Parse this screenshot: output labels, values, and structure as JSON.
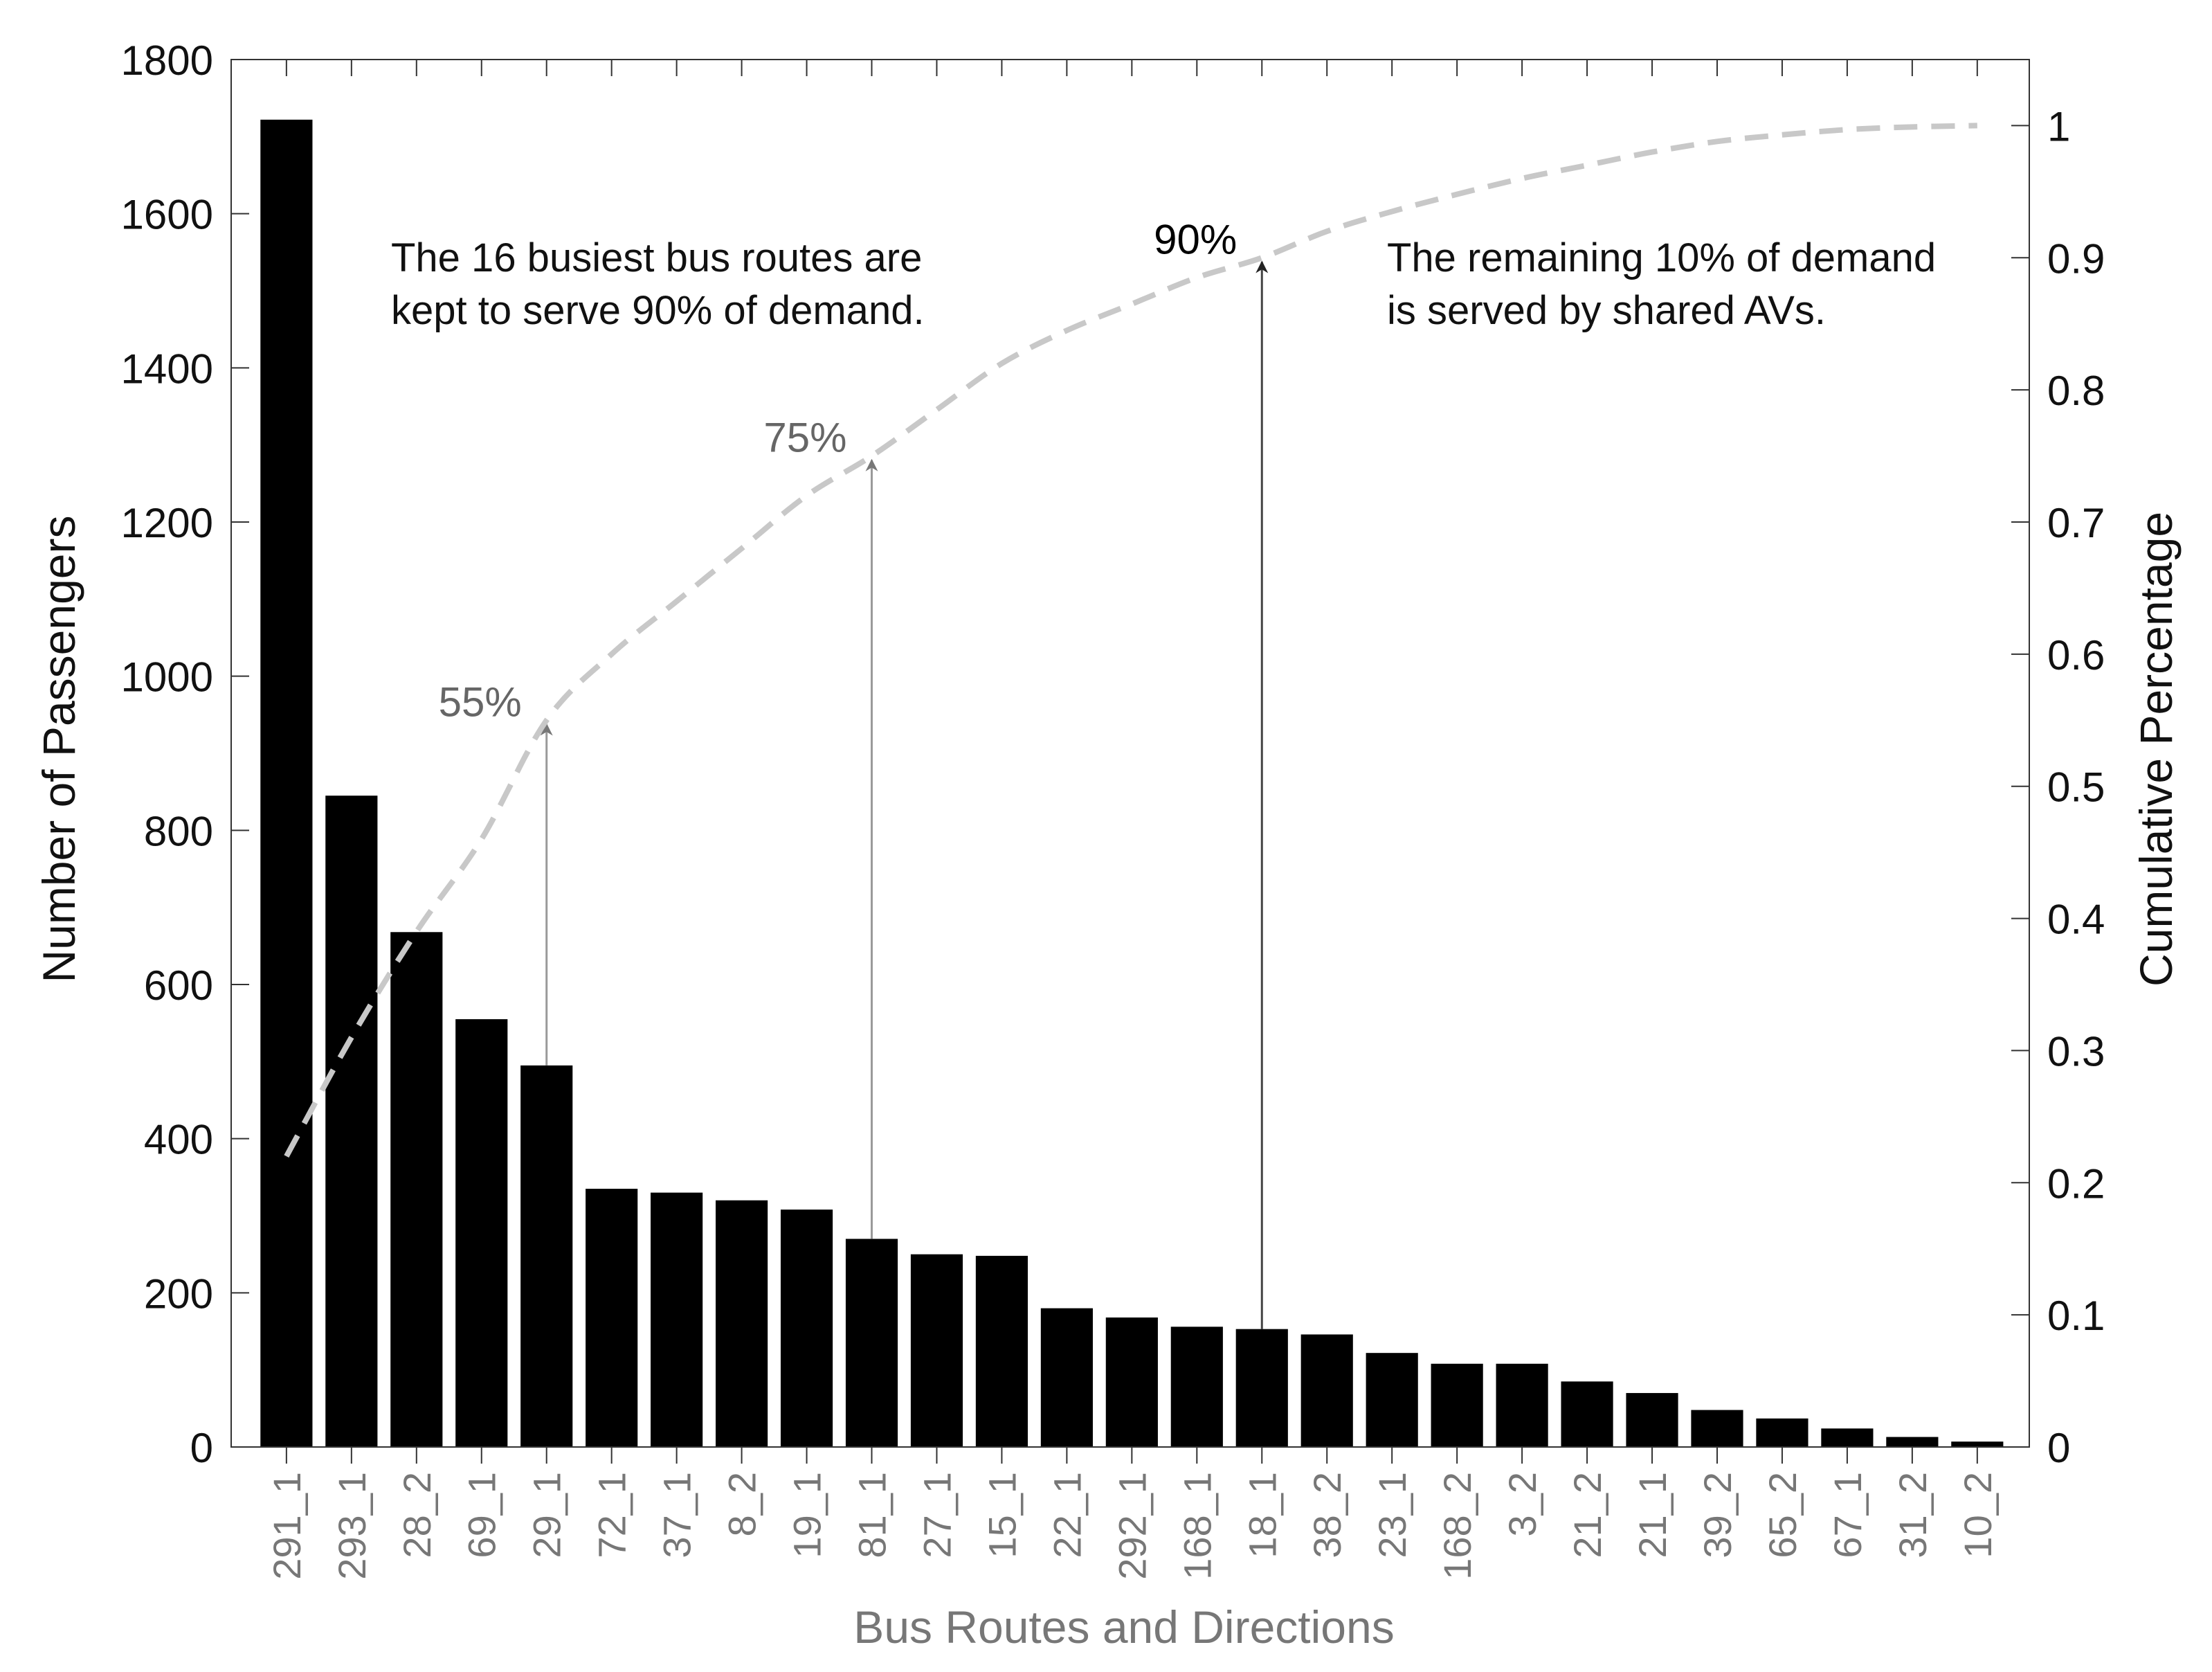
{
  "chart_data": {
    "type": "bar",
    "xlabel": "Bus Routes and Directions",
    "ylabel": "Number of Passengers",
    "y2label": "Cumulative Percentage",
    "ylim": [
      0,
      1800
    ],
    "y2lim": [
      0,
      1.05
    ],
    "yticks": [
      "0",
      "200",
      "400",
      "600",
      "800",
      "1000",
      "1200",
      "1400",
      "1600",
      "1800"
    ],
    "y2ticks": [
      "0",
      "0.1",
      "0.2",
      "0.3",
      "0.4",
      "0.5",
      "0.6",
      "0.7",
      "0.8",
      "0.9",
      "1"
    ],
    "grid": false,
    "categories": [
      "291_1",
      "293_1",
      "28_2",
      "69_1",
      "29_1",
      "72_1",
      "37_1",
      "8_2",
      "19_1",
      "81_1",
      "27_1",
      "15_1",
      "22_1",
      "292_1",
      "168_1",
      "18_1",
      "38_2",
      "23_1",
      "168_2",
      "3_2",
      "21_2",
      "21_1",
      "39_2",
      "65_2",
      "67_1",
      "31_2",
      "10_2"
    ],
    "series": [
      {
        "type": "bar",
        "color": "#000000",
        "values": [
          1722,
          845,
          668,
          555,
          495,
          335,
          330,
          320,
          308,
          270,
          250,
          248,
          180,
          168,
          156,
          153,
          146,
          122,
          108,
          108,
          85,
          70,
          48,
          37,
          24,
          13,
          7
        ]
      },
      {
        "type": "line",
        "axis": "right",
        "style": "dashed",
        "color": "#c8c8c8",
        "values": [
          0.22,
          0.31,
          0.39,
          0.46,
          0.55,
          0.6,
          0.64,
          0.68,
          0.72,
          0.75,
          0.785,
          0.82,
          0.845,
          0.865,
          0.885,
          0.9,
          0.92,
          0.935,
          0.948,
          0.96,
          0.97,
          0.98,
          0.988,
          0.993,
          0.997,
          0.999,
          1.0
        ]
      }
    ],
    "annotations": [
      {
        "label": "55%",
        "category_index": 4,
        "value": 0.55,
        "color": "#666666"
      },
      {
        "label": "75%",
        "category_index": 9,
        "value": 0.75,
        "color": "#666666"
      },
      {
        "label": "90%",
        "category_index": 15,
        "value": 0.9,
        "color": "#000000"
      }
    ],
    "notes": {
      "left": [
        "The 16 busiest bus routes are",
        "kept to serve 90% of demand."
      ],
      "right": [
        "The remaining 10% of demand",
        "is served by shared AVs."
      ]
    }
  }
}
